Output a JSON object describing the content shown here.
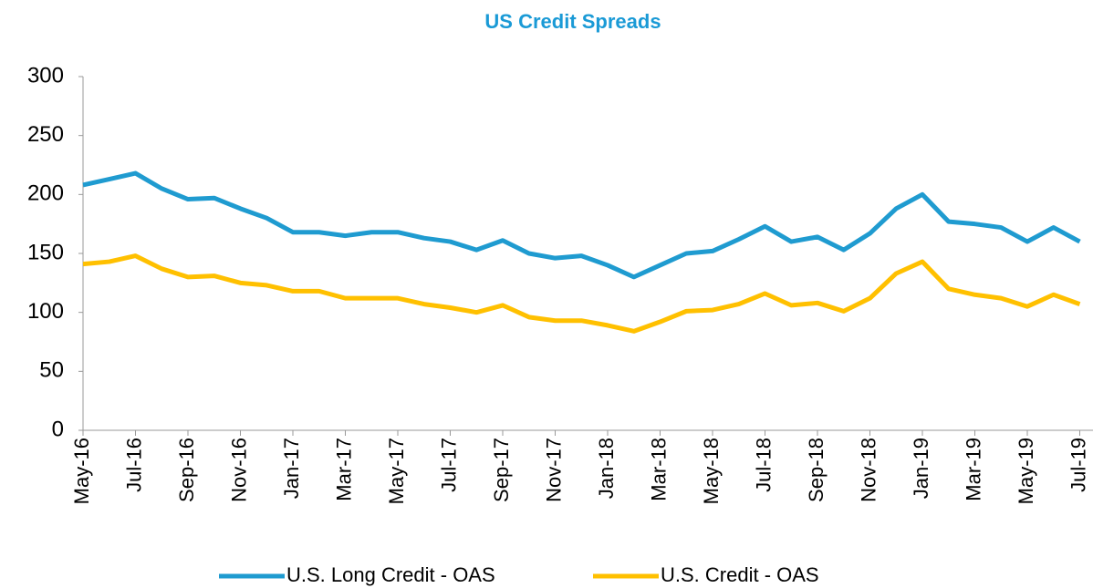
{
  "chart_data": {
    "type": "line",
    "title": "US Credit Spreads",
    "categories": [
      "May-16",
      null,
      "Jul-16",
      null,
      "Sep-16",
      null,
      "Nov-16",
      null,
      "Jan-17",
      null,
      "Mar-17",
      null,
      "May-17",
      null,
      "Jul-17",
      null,
      "Sep-17",
      null,
      "Nov-17",
      null,
      "Jan-18",
      null,
      "Mar-18",
      null,
      "May-18",
      null,
      "Jul-18",
      null,
      "Sep-18",
      null,
      "Nov-18",
      null,
      "Jan-19",
      null,
      "Mar-19",
      null,
      "May-19",
      null,
      "Jul-19"
    ],
    "series": [
      {
        "name": "U.S. Long Credit - OAS",
        "color": "#1f9bd0",
        "values": [
          208,
          213,
          218,
          205,
          196,
          197,
          188,
          180,
          168,
          168,
          165,
          168,
          168,
          163,
          160,
          153,
          161,
          150,
          146,
          148,
          140,
          130,
          140,
          150,
          152,
          162,
          173,
          160,
          164,
          153,
          167,
          188,
          200,
          177,
          175,
          172,
          160,
          172,
          160
        ]
      },
      {
        "name": "U.S. Credit - OAS",
        "color": "#ffc000",
        "values": [
          141,
          143,
          148,
          137,
          130,
          131,
          125,
          123,
          118,
          118,
          112,
          112,
          112,
          107,
          104,
          100,
          106,
          96,
          93,
          93,
          89,
          84,
          92,
          101,
          102,
          107,
          116,
          106,
          108,
          101,
          112,
          133,
          143,
          120,
          115,
          112,
          105,
          115,
          107
        ]
      }
    ],
    "ylim": [
      0,
      300
    ],
    "yticks": [
      0,
      50,
      100,
      150,
      200,
      250,
      300
    ],
    "grid": false
  }
}
